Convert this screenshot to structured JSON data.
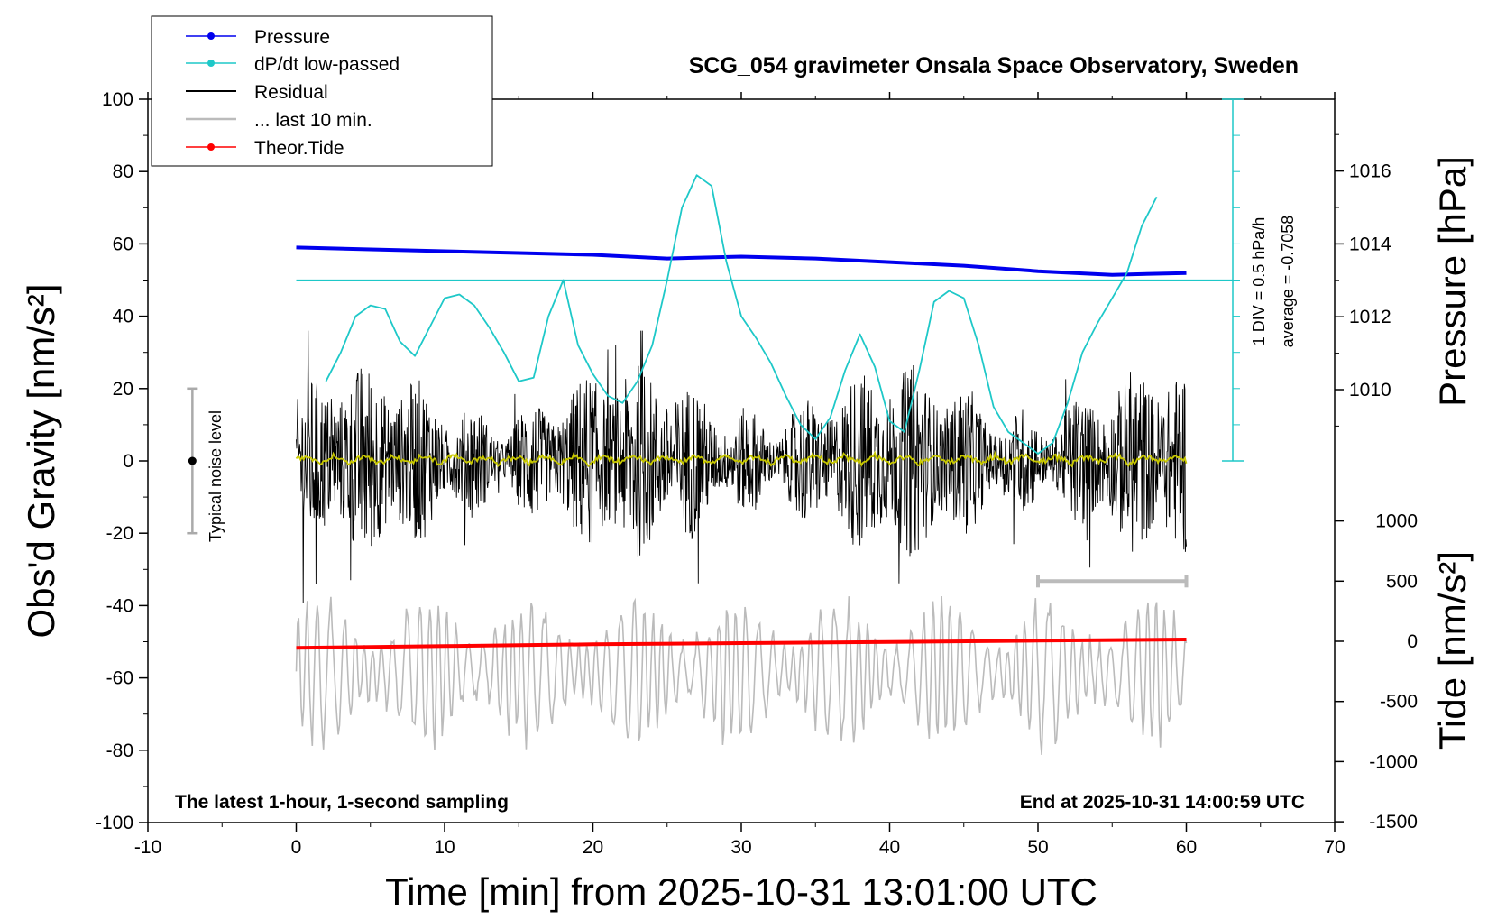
{
  "chart_data": {
    "type": "line",
    "title": "SCG_054 gravimeter Onsala Space Observatory, Sweden",
    "xlabel": "Time [min] from 2025-10-31 13:01:00 UTC",
    "ylabel": "Obs'd Gravity [nm/s²]",
    "y2label": "Pressure [hPa]",
    "y3label": "Tide [nm/s²]",
    "xlim": [
      -10,
      70
    ],
    "ylim": [
      -100,
      100
    ],
    "pressure_lim": [
      1008,
      1018
    ],
    "tide_lim": [
      -1500,
      1000
    ],
    "x_ticks": [
      "-10",
      "0",
      "10",
      "20",
      "30",
      "40",
      "50",
      "60",
      "70"
    ],
    "y_ticks": [
      "100",
      "80",
      "60",
      "40",
      "20",
      "0",
      "-20",
      "-40",
      "-60",
      "-80",
      "-100"
    ],
    "pressure_ticks": [
      "1016",
      "1014",
      "1012",
      "1010"
    ],
    "tide_ticks": [
      "1000",
      "500",
      "0",
      "-500",
      "-1000",
      "-1500"
    ],
    "grid": false,
    "legend_position": "top-left",
    "legend": [
      "Pressure",
      "dP/dt low-passed",
      "Residual",
      "... last 10 min.",
      "Theor.Tide"
    ],
    "annotations": {
      "noise": "Typical noise level",
      "latest": "The latest 1-hour, 1-second sampling",
      "end": "End at 2025-10-31 14:00:59 UTC",
      "dpdt_scale": "1 DIV = 0.5 hPa/h",
      "dpdt_average": "average = -0.7058"
    },
    "noise_bar": {
      "x": -7,
      "y": 0,
      "range": [
        -20,
        20
      ]
    },
    "last10_bar": {
      "x": [
        50,
        60
      ],
      "tide": 500
    },
    "series": [
      {
        "name": "Pressure",
        "axis": "pressure_hPa",
        "color": "#0000ee",
        "x": [
          0,
          5,
          10,
          15,
          20,
          25,
          30,
          35,
          40,
          45,
          50,
          55,
          60
        ],
        "y": [
          1013.9,
          1013.85,
          1013.8,
          1013.75,
          1013.7,
          1013.6,
          1013.65,
          1013.6,
          1013.5,
          1013.4,
          1013.25,
          1013.15,
          1013.2
        ]
      },
      {
        "name": "dP/dt low-passed",
        "axis": "gravity",
        "color": "#1ec8c8",
        "x": [
          2,
          3,
          4,
          5,
          6,
          7,
          8,
          9,
          10,
          11,
          12,
          13,
          14,
          15,
          16,
          17,
          18,
          19,
          20,
          21,
          22,
          23,
          24,
          25,
          26,
          27,
          28,
          29,
          30,
          31,
          32,
          33,
          34,
          35,
          36,
          37,
          38,
          39,
          40,
          41,
          42,
          43,
          44,
          45,
          46,
          47,
          48,
          49,
          50,
          51,
          52,
          53,
          54,
          55,
          56,
          57,
          58
        ],
        "y": [
          22,
          30,
          40,
          43,
          42,
          33,
          29,
          37,
          45,
          46,
          43,
          37,
          30,
          22,
          23,
          40,
          50,
          32,
          24,
          18,
          16,
          22,
          32,
          50,
          70,
          79,
          76,
          55,
          40,
          34,
          27,
          18,
          10,
          6,
          12,
          25,
          35,
          26,
          11,
          8,
          25,
          44,
          47,
          45,
          32,
          15,
          8,
          5,
          2,
          5,
          16,
          30,
          38,
          45,
          52,
          65,
          73
        ]
      },
      {
        "name": "Theor.Tide",
        "axis": "tide",
        "color": "#ff0000",
        "x": [
          0,
          10,
          20,
          30,
          40,
          50,
          60
        ],
        "y": [
          -55,
          -40,
          -25,
          -15,
          -5,
          5,
          15
        ]
      }
    ],
    "residual": {
      "name": "Residual",
      "color": "#000000",
      "x_range": [
        0,
        60
      ],
      "typical_range": [
        -20,
        20
      ],
      "extremes": {
        "max": 36,
        "min": -43
      }
    },
    "residual_smoothed": {
      "color": "#c8c800",
      "typical_range": [
        -2,
        2
      ]
    },
    "last_10_min": {
      "name": "... last 10 min.",
      "axis": "tide",
      "color": "#bbbbbb",
      "x_range": [
        0,
        60
      ],
      "typical_range": [
        -800,
        300
      ]
    },
    "dpdt_reference_line": 50
  }
}
